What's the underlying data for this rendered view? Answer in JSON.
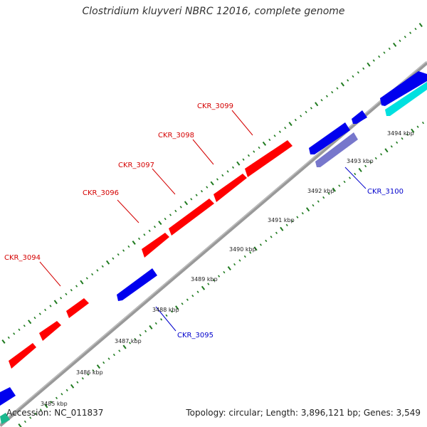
{
  "header": {
    "title": "Clostridium kluyveri NBRC 12016, complete genome"
  },
  "footer": {
    "accession": "Accession: NC_011837",
    "summary": "Topology: circular; Length: 3,896,121 bp; Genes: 3,549"
  },
  "colors": {
    "forward_gene": "#ff0000",
    "reverse_gene": "#0000ee",
    "reverse_gene_light": "#7777cc",
    "cyan_feature": "#00e0e0",
    "backbone": "#999999",
    "tick_dots": "#1f7a1f",
    "label_forward": "#d40000",
    "label_reverse": "#0000cc"
  },
  "scale_labels": [
    "3485 kbp",
    "3486 kbp",
    "3487 kbp",
    "3488 kbp",
    "3489 kbp",
    "3490 kbp",
    "3491 kbp",
    "3492 kbp",
    "3493 kbp",
    "3494 kbp"
  ],
  "gene_labels": [
    "CKR_3094",
    "CKR_3095",
    "CKR_3096",
    "CKR_3097",
    "CKR_3098",
    "CKR_3099",
    "CKR_3100"
  ]
}
